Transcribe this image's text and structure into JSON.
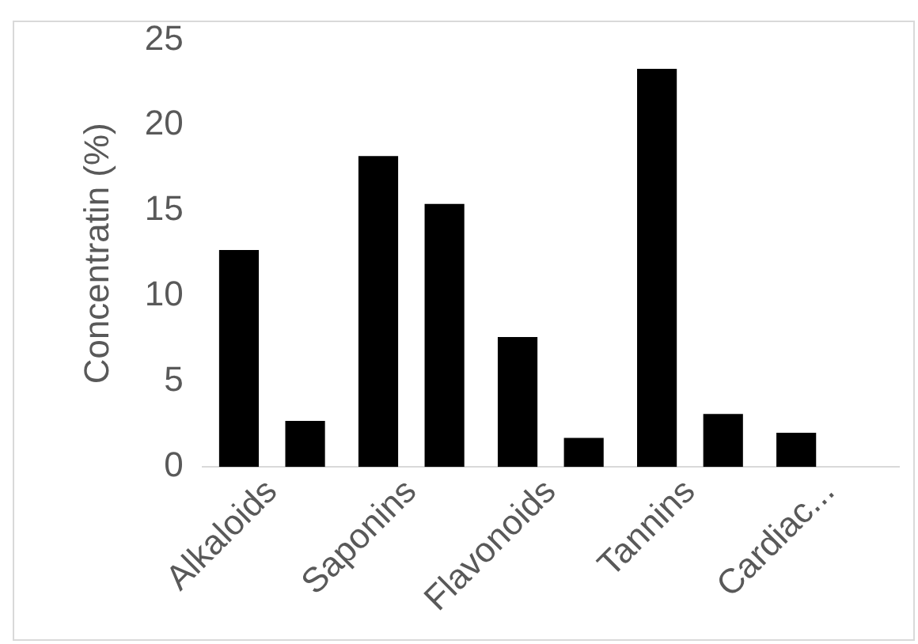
{
  "chart_data": {
    "type": "bar",
    "ylabel": "Concentratin (%)",
    "categories": [
      "Alkaloids",
      "Saponins",
      "Flavonoids",
      "Tannins",
      "Cardiac..."
    ],
    "series": [
      {
        "color": "#000000",
        "values": [
          12.7,
          18.2,
          7.6,
          23.3,
          2.0
        ]
      },
      {
        "color": "#000000",
        "values": [
          2.7,
          15.4,
          1.7,
          3.1,
          null
        ]
      }
    ],
    "ylim": [
      0,
      25
    ],
    "yticks": [
      0,
      5,
      10,
      15,
      20,
      25
    ],
    "grid": false,
    "legend": false
  }
}
